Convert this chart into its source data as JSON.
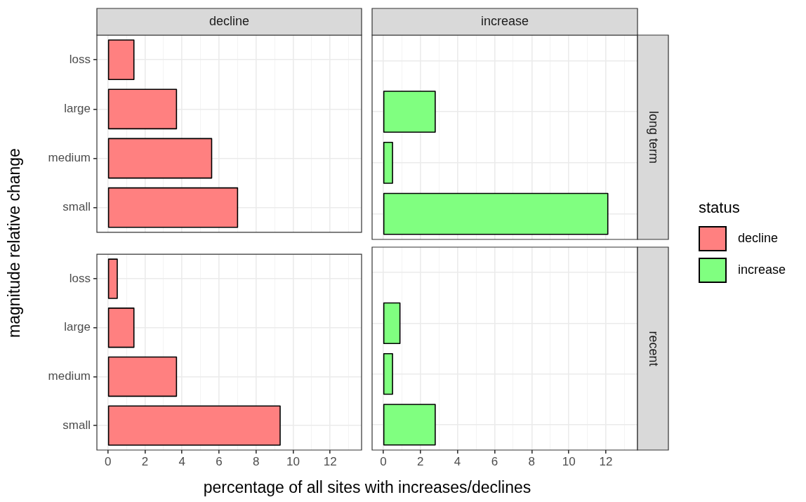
{
  "chart_data": [
    {
      "type": "bar",
      "orientation": "horizontal",
      "title": "decline",
      "ylabel": "magnitude relative change",
      "categories": [
        "loss",
        "large",
        "medium",
        "small"
      ],
      "series": [
        {
          "name": "decline",
          "color": "#ff8080",
          "values": [
            1.4,
            3.7,
            5.6,
            7.0
          ]
        }
      ],
      "xlim": [
        -0.6,
        13.7
      ],
      "xticks": [
        0,
        {
          "value": 1,
          "label": null
        },
        2,
        {
          "value": 3,
          "label": null
        },
        4,
        {
          "value": 5,
          "label": null
        },
        6,
        {
          "value": 7,
          "label": null
        },
        8,
        {
          "value": 9,
          "label": null
        },
        10,
        {
          "value": 11,
          "label": null
        },
        12,
        {
          "value": 13,
          "label": null
        }
      ],
      "grid": true,
      "tick_labels": "y"
    },
    {
      "type": "bar",
      "orientation": "horizontal",
      "title": "increase",
      "y2label": "long term",
      "legend_title": "status",
      "legend": "right",
      "categories": [
        null,
        null,
        null,
        null
      ],
      "series": [
        {
          "name": "increase",
          "color": "#80ff80",
          "values": [
            null,
            2.8,
            0.5,
            12.1
          ]
        }
      ],
      "xlim": [
        -0.6,
        13.7
      ],
      "xticks": [
        0,
        {
          "value": 1,
          "label": null
        },
        2,
        {
          "value": 3,
          "label": null
        },
        4,
        {
          "value": 5,
          "label": null
        },
        6,
        {
          "value": 7,
          "label": null
        },
        8,
        {
          "value": 9,
          "label": null
        },
        10,
        {
          "value": 11,
          "label": null
        },
        12,
        {
          "value": 13,
          "label": null
        }
      ],
      "grid": true,
      "tick_labels": false
    },
    {
      "type": "bar",
      "orientation": "horizontal",
      "xlabel": "percentage of all sites with increases/declines",
      "categories": [
        "loss",
        "large",
        "medium",
        "small"
      ],
      "series": [
        {
          "color": "#ff8080",
          "values": [
            0.5,
            1.4,
            3.7,
            9.3
          ]
        }
      ],
      "xlim": [
        -0.6,
        13.7
      ],
      "xticks": [
        0,
        {
          "value": 1,
          "label": null
        },
        2,
        {
          "value": 3,
          "label": null
        },
        4,
        {
          "value": 5,
          "label": null
        },
        6,
        {
          "value": 7,
          "label": null
        },
        8,
        {
          "value": 9,
          "label": null
        },
        10,
        {
          "value": 11,
          "label": null
        },
        12,
        {
          "value": 13,
          "label": null
        }
      ],
      "grid": true
    },
    {
      "type": "bar",
      "orientation": "horizontal",
      "y2label": "recent",
      "categories": [
        null,
        null,
        null,
        null
      ],
      "series": [
        {
          "color": "#80ff80",
          "values": [
            null,
            0.9,
            0.5,
            2.8
          ]
        }
      ],
      "xlim": [
        -0.6,
        13.7
      ],
      "xticks": [
        0,
        {
          "value": 1,
          "label": null
        },
        2,
        {
          "value": 3,
          "label": null
        },
        4,
        {
          "value": 5,
          "label": null
        },
        6,
        {
          "value": 7,
          "label": null
        },
        8,
        {
          "value": 9,
          "label": null
        },
        10,
        {
          "value": 11,
          "label": null
        },
        12,
        {
          "value": 13,
          "label": null
        }
      ],
      "grid": true,
      "tick_labels": "x"
    }
  ]
}
